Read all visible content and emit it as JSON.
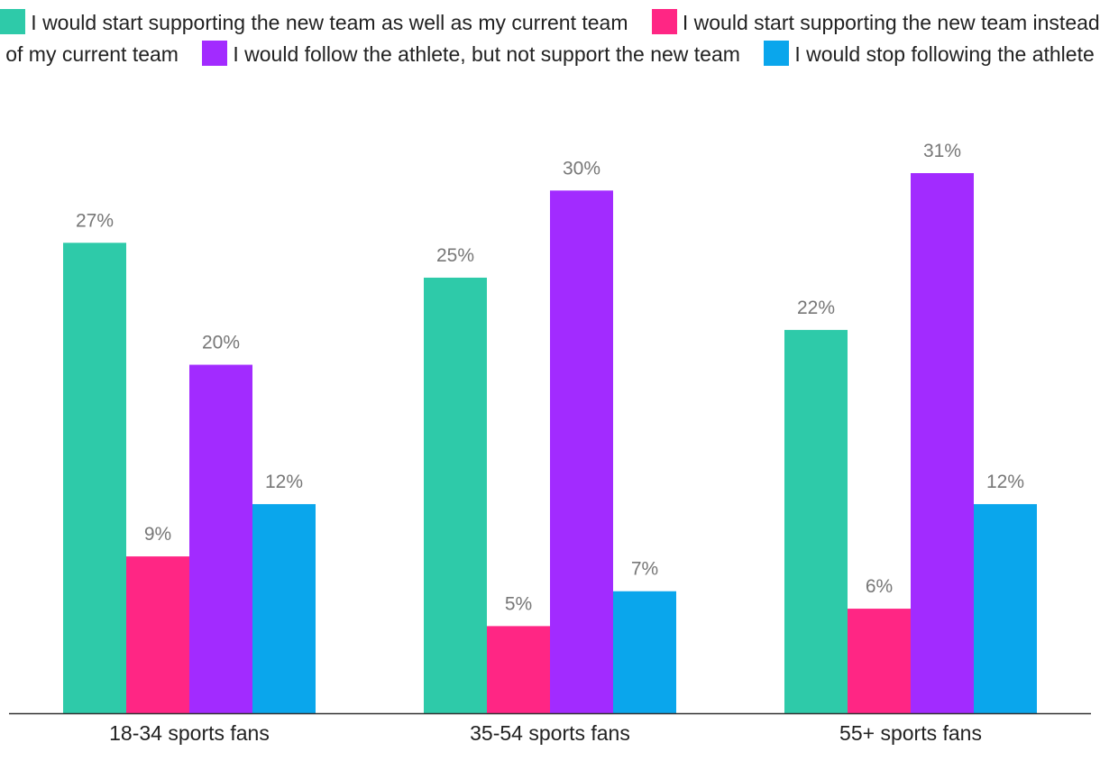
{
  "chart_data": {
    "type": "bar",
    "categories": [
      "18-34 sports fans",
      "35-54 sports fans",
      "55+ sports fans"
    ],
    "series": [
      {
        "name": "I would start supporting the new team as well as my current team",
        "color": "#2ecaa9",
        "values": [
          27,
          25,
          22
        ]
      },
      {
        "name": "I would start supporting the new team instead of my current team",
        "color": "#ff2684",
        "values": [
          9,
          5,
          6
        ]
      },
      {
        "name": "I would follow the athlete, but not support the new team",
        "color": "#a22bff",
        "values": [
          20,
          30,
          31
        ]
      },
      {
        "name": "I would stop following the athlete",
        "color": "#0aa6ec",
        "values": [
          12,
          7,
          12
        ]
      }
    ],
    "value_suffix": "%",
    "ylim": [
      0,
      31
    ],
    "grid": false,
    "legend_position": "top"
  }
}
